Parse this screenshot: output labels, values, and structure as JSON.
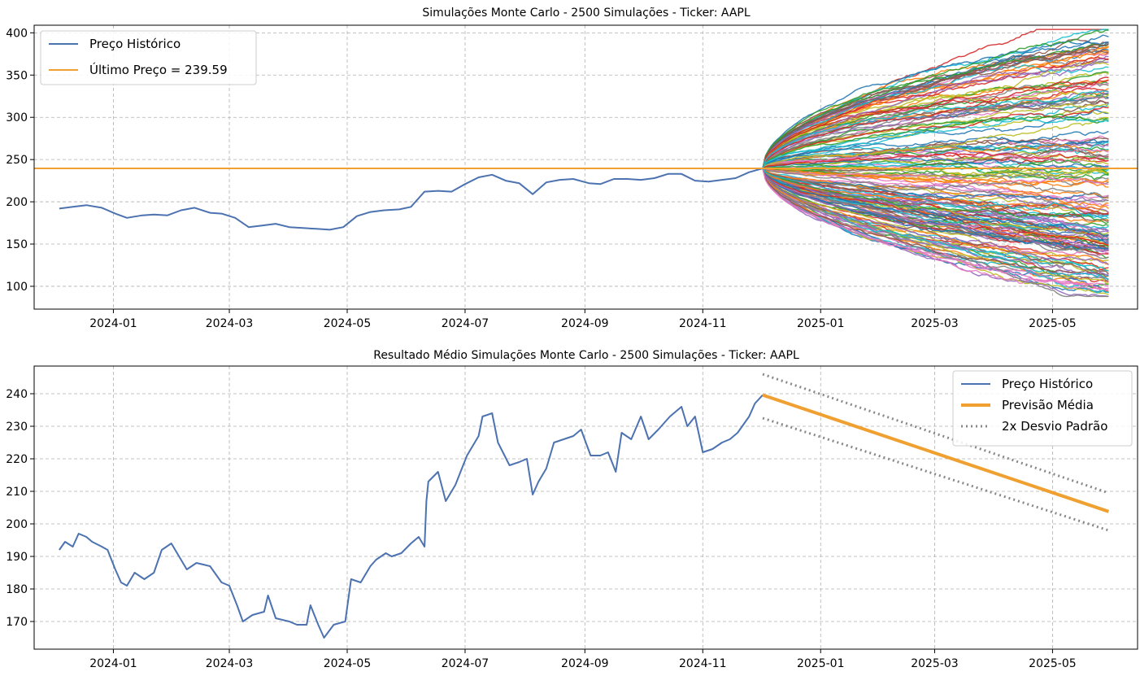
{
  "chart_data": [
    {
      "type": "line",
      "title": "Simulações Monte Carlo - 2500 Simulações - Ticker: AAPL",
      "xlabel": "",
      "ylabel": "",
      "x_ticks": [
        "2024-01",
        "2024-03",
        "2024-05",
        "2024-07",
        "2024-09",
        "2024-11",
        "2025-01",
        "2025-03",
        "2025-05"
      ],
      "y_ticks": [
        100,
        150,
        200,
        250,
        300,
        350,
        400
      ],
      "xlim": [
        "2023-11-21",
        "2025-06-14"
      ],
      "ylim": [
        73,
        409
      ],
      "grid": true,
      "legend_position": "top-left",
      "last_price": 239.59,
      "series": [
        {
          "name": "Preço Histórico",
          "color": "#4c72b0",
          "points": [
            [
              "2023-12-04",
              192
            ],
            [
              "2023-12-11",
              194
            ],
            [
              "2023-12-18",
              196
            ],
            [
              "2023-12-26",
              193
            ],
            [
              "2024-01-02",
              186
            ],
            [
              "2024-01-08",
              181
            ],
            [
              "2024-01-16",
              184
            ],
            [
              "2024-01-22",
              185
            ],
            [
              "2024-01-29",
              184
            ],
            [
              "2024-02-05",
              190
            ],
            [
              "2024-02-12",
              193
            ],
            [
              "2024-02-20",
              187
            ],
            [
              "2024-02-26",
              186
            ],
            [
              "2024-03-04",
              181
            ],
            [
              "2024-03-11",
              170
            ],
            [
              "2024-03-18",
              172
            ],
            [
              "2024-03-25",
              174
            ],
            [
              "2024-04-01",
              170
            ],
            [
              "2024-04-08",
              169
            ],
            [
              "2024-04-15",
              168
            ],
            [
              "2024-04-22",
              167
            ],
            [
              "2024-04-29",
              170
            ],
            [
              "2024-05-06",
              183
            ],
            [
              "2024-05-13",
              188
            ],
            [
              "2024-05-20",
              190
            ],
            [
              "2024-05-28",
              191
            ],
            [
              "2024-06-03",
              194
            ],
            [
              "2024-06-10",
              212
            ],
            [
              "2024-06-17",
              213
            ],
            [
              "2024-06-24",
              212
            ],
            [
              "2024-07-01",
              221
            ],
            [
              "2024-07-08",
              229
            ],
            [
              "2024-07-15",
              232
            ],
            [
              "2024-07-22",
              225
            ],
            [
              "2024-07-29",
              222
            ],
            [
              "2024-08-05",
              209
            ],
            [
              "2024-08-12",
              223
            ],
            [
              "2024-08-19",
              226
            ],
            [
              "2024-08-26",
              227
            ],
            [
              "2024-09-03",
              222
            ],
            [
              "2024-09-09",
              221
            ],
            [
              "2024-09-16",
              227
            ],
            [
              "2024-09-23",
              227
            ],
            [
              "2024-09-30",
              226
            ],
            [
              "2024-10-07",
              228
            ],
            [
              "2024-10-14",
              233
            ],
            [
              "2024-10-21",
              233
            ],
            [
              "2024-10-28",
              225
            ],
            [
              "2024-11-04",
              224
            ],
            [
              "2024-11-11",
              226
            ],
            [
              "2024-11-18",
              228
            ],
            [
              "2024-11-25",
              235
            ],
            [
              "2024-12-02",
              239.59
            ]
          ]
        },
        {
          "name": "Último Preço = 239.59",
          "color": "#f0a030",
          "type": "hline",
          "y": 239.59
        }
      ],
      "simulations": {
        "count_label": "2500",
        "start_date": "2024-12-02",
        "end_date": "2025-05-30",
        "start_value": 239.59,
        "max_value": 404,
        "min_value": 88
      }
    },
    {
      "type": "line",
      "title": "Resultado Médio Simulações Monte Carlo - 2500 Simulações - Ticker: AAPL",
      "xlabel": "",
      "ylabel": "",
      "x_ticks": [
        "2024-01",
        "2024-03",
        "2024-05",
        "2024-07",
        "2024-09",
        "2024-11",
        "2025-01",
        "2025-03",
        "2025-05"
      ],
      "y_ticks": [
        170,
        180,
        190,
        200,
        210,
        220,
        230,
        240
      ],
      "xlim": [
        "2023-11-21",
        "2025-06-14"
      ],
      "ylim": [
        161.5,
        248.5
      ],
      "grid": true,
      "legend_position": "top-right",
      "series": [
        {
          "name": "Preço Histórico",
          "color": "#4c72b0",
          "points": [
            [
              "2023-12-04",
              192
            ],
            [
              "2023-12-07",
              194.5
            ],
            [
              "2023-12-11",
              193
            ],
            [
              "2023-12-14",
              197
            ],
            [
              "2023-12-18",
              196
            ],
            [
              "2023-12-21",
              194.5
            ],
            [
              "2023-12-26",
              193
            ],
            [
              "2023-12-29",
              192
            ],
            [
              "2024-01-02",
              186
            ],
            [
              "2024-01-05",
              182
            ],
            [
              "2024-01-08",
              181
            ],
            [
              "2024-01-12",
              185
            ],
            [
              "2024-01-17",
              183
            ],
            [
              "2024-01-22",
              185
            ],
            [
              "2024-01-26",
              192
            ],
            [
              "2024-01-31",
              194
            ],
            [
              "2024-02-05",
              189
            ],
            [
              "2024-02-08",
              186
            ],
            [
              "2024-02-13",
              188
            ],
            [
              "2024-02-20",
              187
            ],
            [
              "2024-02-26",
              182
            ],
            [
              "2024-03-01",
              181
            ],
            [
              "2024-03-05",
              175
            ],
            [
              "2024-03-08",
              170
            ],
            [
              "2024-03-13",
              172
            ],
            [
              "2024-03-19",
              173
            ],
            [
              "2024-03-21",
              178
            ],
            [
              "2024-03-25",
              171
            ],
            [
              "2024-04-01",
              170
            ],
            [
              "2024-04-05",
              169
            ],
            [
              "2024-04-10",
              169
            ],
            [
              "2024-04-12",
              175
            ],
            [
              "2024-04-16",
              169
            ],
            [
              "2024-04-19",
              165
            ],
            [
              "2024-04-24",
              169
            ],
            [
              "2024-04-30",
              170
            ],
            [
              "2024-05-03",
              183
            ],
            [
              "2024-05-08",
              182
            ],
            [
              "2024-05-13",
              187
            ],
            [
              "2024-05-16",
              189
            ],
            [
              "2024-05-21",
              191
            ],
            [
              "2024-05-24",
              190
            ],
            [
              "2024-05-29",
              191
            ],
            [
              "2024-06-03",
              194
            ],
            [
              "2024-06-07",
              196
            ],
            [
              "2024-06-10",
              193
            ],
            [
              "2024-06-11",
              207
            ],
            [
              "2024-06-12",
              213
            ],
            [
              "2024-06-17",
              216
            ],
            [
              "2024-06-21",
              207
            ],
            [
              "2024-06-26",
              212
            ],
            [
              "2024-07-02",
              221
            ],
            [
              "2024-07-08",
              227
            ],
            [
              "2024-07-10",
              233
            ],
            [
              "2024-07-15",
              234
            ],
            [
              "2024-07-18",
              225
            ],
            [
              "2024-07-24",
              218
            ],
            [
              "2024-07-29",
              219
            ],
            [
              "2024-08-02",
              220
            ],
            [
              "2024-08-05",
              209
            ],
            [
              "2024-08-08",
              213
            ],
            [
              "2024-08-12",
              217
            ],
            [
              "2024-08-16",
              225
            ],
            [
              "2024-08-21",
              226
            ],
            [
              "2024-08-26",
              227
            ],
            [
              "2024-08-30",
              229
            ],
            [
              "2024-09-04",
              221
            ],
            [
              "2024-09-09",
              221
            ],
            [
              "2024-09-13",
              222
            ],
            [
              "2024-09-17",
              216
            ],
            [
              "2024-09-20",
              228
            ],
            [
              "2024-09-25",
              226
            ],
            [
              "2024-09-30",
              233
            ],
            [
              "2024-10-04",
              226
            ],
            [
              "2024-10-09",
              229
            ],
            [
              "2024-10-15",
              233
            ],
            [
              "2024-10-21",
              236
            ],
            [
              "2024-10-24",
              230
            ],
            [
              "2024-10-28",
              233
            ],
            [
              "2024-11-01",
              222
            ],
            [
              "2024-11-06",
              223
            ],
            [
              "2024-11-11",
              225
            ],
            [
              "2024-11-15",
              226
            ],
            [
              "2024-11-19",
              228
            ],
            [
              "2024-11-25",
              233
            ],
            [
              "2024-11-28",
              237
            ],
            [
              "2024-12-02",
              239.59
            ]
          ]
        },
        {
          "name": "Previsão Média",
          "color": "#f0a030",
          "points": [
            [
              "2024-12-02",
              239.59
            ],
            [
              "2025-05-30",
              203.8
            ]
          ]
        },
        {
          "name": "2x Desvio Padrão",
          "color": "#888888",
          "style": "dotted",
          "points_upper": [
            [
              "2024-12-02",
              246
            ],
            [
              "2025-05-30",
              209.5
            ]
          ],
          "points_lower": [
            [
              "2024-12-02",
              232.5
            ],
            [
              "2025-05-30",
              198
            ]
          ]
        }
      ]
    }
  ]
}
